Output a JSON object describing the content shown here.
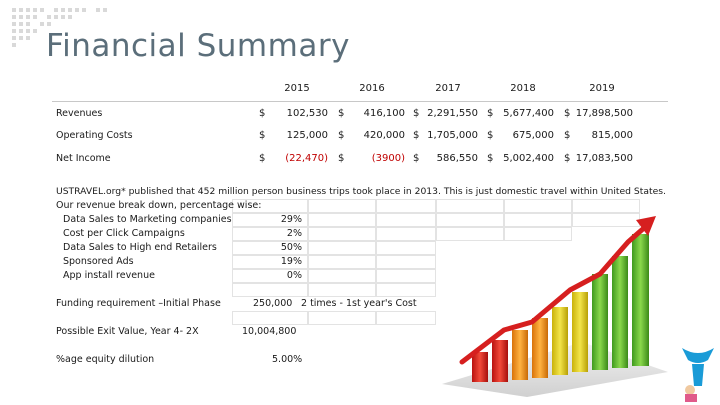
{
  "title": "Financial Summary",
  "years": [
    "2015",
    "2016",
    "2017",
    "2018",
    "2019"
  ],
  "rows": [
    {
      "label": "Revenues",
      "currency": "$",
      "values": [
        "102,530",
        "416,100",
        "2,291,550",
        "5,677,400",
        "17,898,500"
      ],
      "negative": [
        false,
        false,
        false,
        false,
        false
      ]
    },
    {
      "label": "Operating Costs",
      "currency": "$",
      "values": [
        "125,000",
        "420,000",
        "1,705,000",
        "675,000",
        "815,000"
      ],
      "negative": [
        false,
        false,
        false,
        false,
        false
      ]
    },
    {
      "label": "Net Income",
      "currency": "$",
      "values": [
        "(22,470)",
        "(3900)",
        "586,550",
        "5,002,400",
        "17,083,500"
      ],
      "negative": [
        true,
        true,
        false,
        false,
        false
      ]
    }
  ],
  "note_line1": "USTRAVEL.org* published that 452 million person business trips took place in 2013. This is just domestic travel within United States.",
  "note_line2": "Our revenue break down, percentage wise:",
  "breakdown": [
    {
      "label": "Data Sales to Marketing companies",
      "pct": "29%"
    },
    {
      "label": "Cost per Click Campaigns",
      "pct": "2%"
    },
    {
      "label": "Data Sales to High end Retailers",
      "pct": "50%"
    },
    {
      "label": "Sponsored Ads",
      "pct": "19%"
    },
    {
      "label": "App install revenue",
      "pct": "0%"
    }
  ],
  "funding_label": "Funding requirement –Initial Phase",
  "funding_value": "250,000",
  "funding_note": "2 times - 1st year's Cost",
  "exit_label": "Possible Exit Value, Year 4- 2X",
  "exit_value": "10,004,800",
  "equity_label": "%age equity dilution",
  "equity_value": "5.00%",
  "colors": {
    "title": "#5b6e7a",
    "negative": "#c00000",
    "arrow": "#d61f1f",
    "bar_green": "#5cb82e",
    "logo": "#1a9bd7"
  }
}
